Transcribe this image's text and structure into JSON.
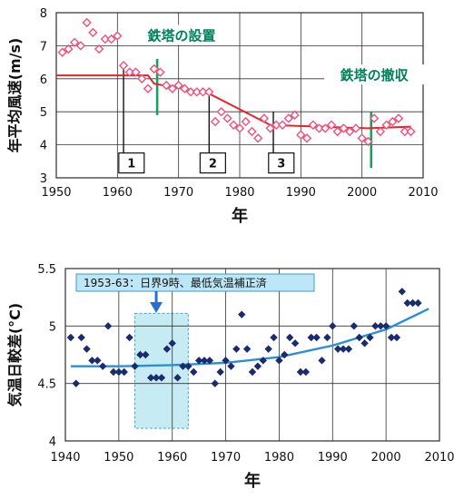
{
  "chart_data": [
    {
      "type": "scatter",
      "title": "",
      "xlabel": "年",
      "ylabel": "年平均風速(m/s)",
      "xlim": [
        1950,
        2010
      ],
      "ylim": [
        3,
        8
      ],
      "xticks": [
        1950,
        1960,
        1970,
        1980,
        1990,
        2000,
        2010
      ],
      "yticks": [
        3,
        4,
        5,
        6,
        7,
        8
      ],
      "grid": true,
      "colors": {
        "points": "#f0507a",
        "trend": "#e8232a",
        "markers": "#18a060"
      },
      "points": [
        [
          1951,
          6.8
        ],
        [
          1952,
          6.9
        ],
        [
          1953,
          7.1
        ],
        [
          1954,
          7.0
        ],
        [
          1955,
          7.7
        ],
        [
          1956,
          7.4
        ],
        [
          1957,
          6.9
        ],
        [
          1958,
          7.2
        ],
        [
          1959,
          7.2
        ],
        [
          1960,
          7.3
        ],
        [
          1961,
          6.4
        ],
        [
          1962,
          6.2
        ],
        [
          1963,
          6.2
        ],
        [
          1964,
          6.0
        ],
        [
          1965,
          5.7
        ],
        [
          1966,
          6.3
        ],
        [
          1967,
          6.2
        ],
        [
          1968,
          5.8
        ],
        [
          1969,
          5.7
        ],
        [
          1970,
          5.8
        ],
        [
          1971,
          5.7
        ],
        [
          1972,
          5.6
        ],
        [
          1973,
          5.6
        ],
        [
          1974,
          5.6
        ],
        [
          1975,
          5.6
        ],
        [
          1976,
          4.7
        ],
        [
          1977,
          5.0
        ],
        [
          1978,
          4.8
        ],
        [
          1979,
          4.6
        ],
        [
          1980,
          4.5
        ],
        [
          1981,
          4.7
        ],
        [
          1982,
          4.4
        ],
        [
          1983,
          4.2
        ],
        [
          1984,
          4.8
        ],
        [
          1985,
          4.5
        ],
        [
          1986,
          4.6
        ],
        [
          1987,
          4.6
        ],
        [
          1988,
          4.8
        ],
        [
          1989,
          4.9
        ],
        [
          1990,
          4.3
        ],
        [
          1991,
          4.2
        ],
        [
          1992,
          4.6
        ],
        [
          1993,
          4.5
        ],
        [
          1994,
          4.5
        ],
        [
          1995,
          4.6
        ],
        [
          1996,
          4.4
        ],
        [
          1997,
          4.5
        ],
        [
          1998,
          4.4
        ],
        [
          1999,
          4.5
        ],
        [
          2000,
          4.2
        ],
        [
          2001,
          4.1
        ],
        [
          2002,
          4.8
        ],
        [
          2003,
          4.4
        ],
        [
          2004,
          4.6
        ],
        [
          2005,
          4.7
        ],
        [
          2006,
          4.8
        ],
        [
          2007,
          4.4
        ],
        [
          2008,
          4.4
        ]
      ],
      "trend": [
        [
          1950,
          6.1
        ],
        [
          1965,
          6.1
        ],
        [
          1966,
          5.85
        ],
        [
          1975,
          5.55
        ],
        [
          1985,
          4.6
        ],
        [
          2001,
          4.5
        ],
        [
          2008,
          4.55
        ]
      ],
      "event_lines": [
        {
          "year": 1961,
          "y0": 3.3,
          "y1": 6.3,
          "color": "#111"
        },
        {
          "year": 1966.5,
          "y0": 4.9,
          "y1": 6.6,
          "color": "#18a060"
        },
        {
          "year": 1975,
          "y0": 3.6,
          "y1": 5.6,
          "color": "#111"
        },
        {
          "year": 1985.5,
          "y0": 3.6,
          "y1": 5.0,
          "color": "#111"
        },
        {
          "year": 2001.5,
          "y0": 3.3,
          "y1": 5.0,
          "color": "#18a060"
        }
      ],
      "annotations": [
        {
          "text": "鉄塔の設置",
          "x": 1970.5,
          "y": 7.3
        },
        {
          "text": "鉄塔の撤収",
          "x": 2002,
          "y": 6.1
        }
      ],
      "boxed_labels": [
        {
          "text": "1",
          "x": 1962.3,
          "y": 3.45
        },
        {
          "text": "2",
          "x": 1975.6,
          "y": 3.45
        },
        {
          "text": "3",
          "x": 1986.8,
          "y": 3.45
        }
      ]
    },
    {
      "type": "scatter",
      "title": "",
      "xlabel": "年",
      "ylabel": "気温日較差(°C)",
      "xlim": [
        1940,
        2010
      ],
      "ylim": [
        4,
        5.5
      ],
      "xticks": [
        1940,
        1950,
        1960,
        1970,
        1980,
        1990,
        2000,
        2010
      ],
      "yticks": [
        4,
        4.5,
        5,
        5.5
      ],
      "grid": true,
      "colors": {
        "points": "#1a2b6e",
        "trend": "#2a8fd8",
        "highlight": "#c7ebf3",
        "callout": "#bde6f6"
      },
      "highlight_range": {
        "x": [
          1953,
          1963
        ],
        "y": [
          4.11,
          5.11
        ]
      },
      "callout": {
        "text": "1953-63：日界9時、最低気温補正済",
        "arrow_x": 1957
      },
      "points": [
        [
          1941,
          4.9
        ],
        [
          1942,
          4.5
        ],
        [
          1943,
          4.9
        ],
        [
          1944,
          4.8
        ],
        [
          1945,
          4.7
        ],
        [
          1946,
          4.7
        ],
        [
          1947,
          4.65
        ],
        [
          1948,
          5.0
        ],
        [
          1949,
          4.6
        ],
        [
          1950,
          4.6
        ],
        [
          1951,
          4.6
        ],
        [
          1952,
          4.9
        ],
        [
          1953,
          4.65
        ],
        [
          1954,
          4.75
        ],
        [
          1955,
          4.75
        ],
        [
          1956,
          4.55
        ],
        [
          1957,
          4.55
        ],
        [
          1958,
          4.55
        ],
        [
          1959,
          4.8
        ],
        [
          1960,
          4.85
        ],
        [
          1961,
          4.55
        ],
        [
          1962,
          4.65
        ],
        [
          1963,
          4.65
        ],
        [
          1964,
          4.6
        ],
        [
          1965,
          4.7
        ],
        [
          1966,
          4.7
        ],
        [
          1967,
          4.7
        ],
        [
          1968,
          4.5
        ],
        [
          1969,
          4.6
        ],
        [
          1970,
          4.7
        ],
        [
          1971,
          4.65
        ],
        [
          1972,
          4.8
        ],
        [
          1973,
          5.1
        ],
        [
          1974,
          4.8
        ],
        [
          1975,
          4.6
        ],
        [
          1976,
          4.65
        ],
        [
          1977,
          4.7
        ],
        [
          1978,
          4.8
        ],
        [
          1979,
          4.9
        ],
        [
          1980,
          4.7
        ],
        [
          1981,
          4.75
        ],
        [
          1982,
          4.9
        ],
        [
          1983,
          4.85
        ],
        [
          1984,
          4.6
        ],
        [
          1985,
          4.6
        ],
        [
          1986,
          4.9
        ],
        [
          1987,
          4.9
        ],
        [
          1988,
          4.7
        ],
        [
          1989,
          4.9
        ],
        [
          1990,
          5.0
        ],
        [
          1991,
          4.8
        ],
        [
          1992,
          4.8
        ],
        [
          1993,
          4.8
        ],
        [
          1994,
          5.0
        ],
        [
          1995,
          4.9
        ],
        [
          1996,
          4.85
        ],
        [
          1997,
          4.9
        ],
        [
          1998,
          5.0
        ],
        [
          1999,
          5.0
        ],
        [
          2000,
          5.0
        ],
        [
          2001,
          4.9
        ],
        [
          2002,
          4.9
        ],
        [
          2003,
          5.3
        ],
        [
          2004,
          5.2
        ],
        [
          2005,
          5.2
        ],
        [
          2006,
          5.2
        ]
      ],
      "trend_curve": {
        "x": [
          1941,
          1950,
          1960,
          1970,
          1980,
          1990,
          2000,
          2008
        ],
        "y": [
          4.65,
          4.65,
          4.66,
          4.68,
          4.73,
          4.83,
          4.97,
          5.15
        ]
      }
    }
  ]
}
